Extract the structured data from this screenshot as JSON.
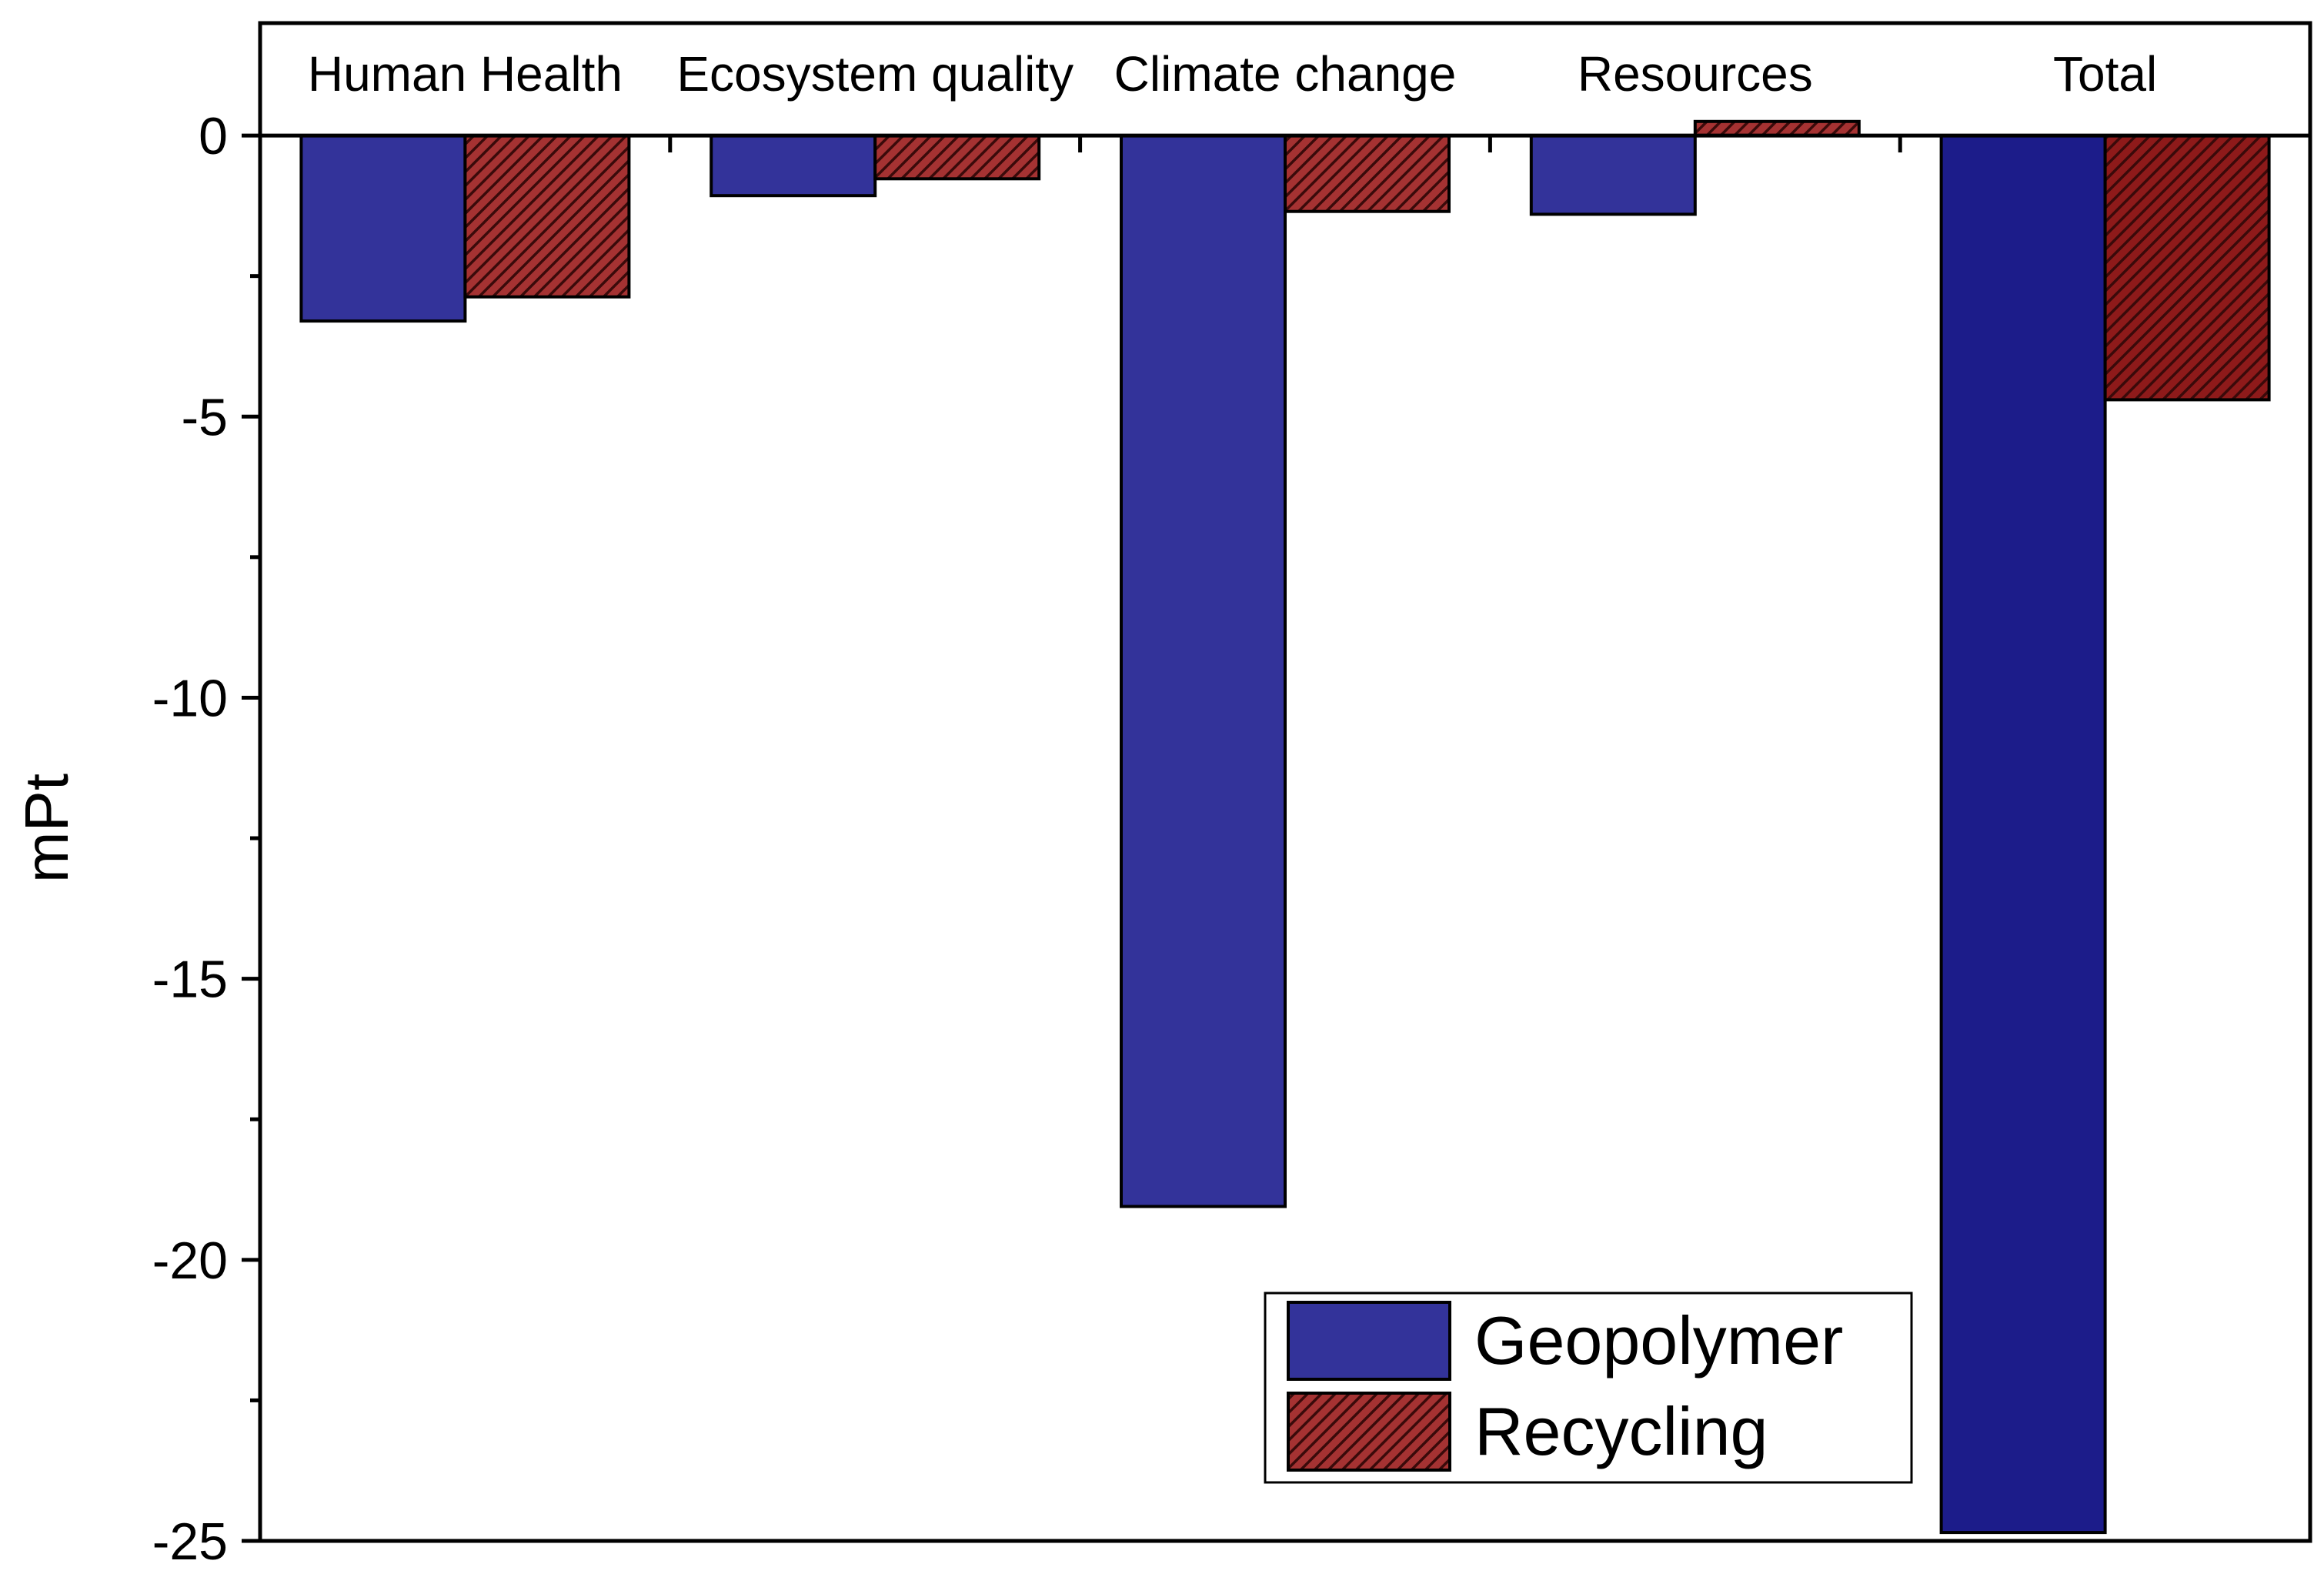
{
  "chart_data": {
    "type": "bar",
    "categories": [
      "Human Health",
      "Ecosystem quality",
      "Climate change",
      "Resources",
      "Total"
    ],
    "series": [
      {
        "name": "Geopolymer",
        "values": [
          -3.3,
          -1.07,
          -19.05,
          -1.4,
          -24.85
        ]
      },
      {
        "name": "Recycling",
        "values": [
          -2.87,
          -0.77,
          -1.35,
          0.25,
          -4.7
        ]
      }
    ],
    "xlabel": "",
    "ylabel": "mPt",
    "ylim": [
      -25,
      2
    ],
    "yticks": [
      0,
      -5,
      -10,
      -15,
      -20,
      -25
    ],
    "ytick_labels": [
      "0",
      "-5",
      "-10",
      "-15",
      "-20",
      "-25"
    ],
    "category_label_position": "top",
    "grid": false,
    "legend_position": "bottom-right",
    "colors": {
      "Geopolymer": "#33339a",
      "Geopolymer_total": "#1c1c8a",
      "Recycling": "#a53232",
      "Recycling_total": "#8e1a1a",
      "Recycling_hatch": "#3a0a0a",
      "outline": "#000000"
    },
    "bar_patterns": {
      "Geopolymer": "solid",
      "Recycling": "diagonal-hatch"
    }
  }
}
